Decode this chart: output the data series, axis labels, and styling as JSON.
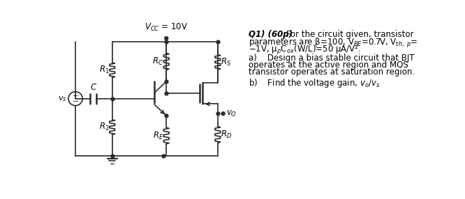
{
  "vcc_label": "$V_{CC}$ = 10V",
  "R1_label": "$R_1$",
  "R2_label": "$R_2$",
  "RC_label": "$R_C$",
  "RE_label": "$R_E$",
  "RS_label": "$R_S$",
  "RD_label": "$R_D$",
  "C_label": "$C$",
  "vs_label": "$v_s$",
  "vo_label": "$v_O$",
  "bg_color": "#ffffff",
  "line_color": "#2a2a2a",
  "q1_bold": "Q1) (60p)",
  "q1_text": " For the circuit given, transistor",
  "q1_line2": "parameters are β=100, V₂ₑ=0.7V, Vₜₕ, ₚ=",
  "q1_line3": "−1V, μₚCₒₓ(W/L)=50 μA/V².",
  "qa_label": "a)",
  "qa_text1": "Design a bias stable circuit that BJT",
  "qa_text2": "operates at the active region and MOS",
  "qa_text3": "transistor operates at saturation region.",
  "qb_label": "b)",
  "qb_text": "Find the voltage gain, $v_o$/$v_s$"
}
